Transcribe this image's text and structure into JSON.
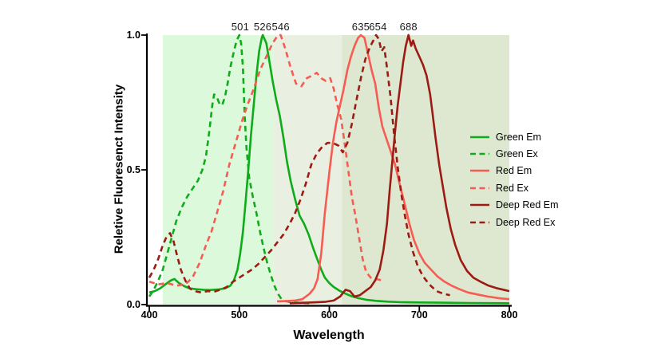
{
  "chart_data": {
    "type": "line",
    "title": "",
    "xlabel": "Wavelength",
    "ylabel": "Reletive Fluoresenct Intensity",
    "xlim": [
      400,
      800
    ],
    "ylim": [
      0,
      1
    ],
    "grid": false,
    "legend_position": "right",
    "x_ticks": [
      400,
      500,
      600,
      700,
      800
    ],
    "y_ticks": [
      1.0,
      0.5,
      0.0
    ],
    "x_tick_labels": [
      "400",
      "500",
      "600",
      "700",
      "800"
    ],
    "y_tick_labels": [
      "1.0",
      "0.5",
      "0.0"
    ],
    "peak_labels": [
      {
        "text": "501",
        "nm": 501
      },
      {
        "text": "526",
        "nm": 526
      },
      {
        "text": "546",
        "nm": 546
      },
      {
        "text": "635",
        "nm": 635
      },
      {
        "text": "654",
        "nm": 654
      },
      {
        "text": "688",
        "nm": 688
      }
    ],
    "background_bands": [
      {
        "from_nm": 415,
        "to_nm": 538,
        "color": "#dcfadb"
      },
      {
        "from_nm": 538,
        "to_nm": 614,
        "color": "#e9f0e2"
      },
      {
        "from_nm": 614,
        "to_nm": 800,
        "color": "#dee8d0"
      }
    ],
    "series": [
      {
        "name": "Green Em",
        "color": "#10ab1b",
        "dash": "solid",
        "points": [
          [
            400,
            0.045
          ],
          [
            406,
            0.05
          ],
          [
            412,
            0.06
          ],
          [
            418,
            0.075
          ],
          [
            424,
            0.09
          ],
          [
            428,
            0.095
          ],
          [
            433,
            0.08
          ],
          [
            439,
            0.068
          ],
          [
            445,
            0.06
          ],
          [
            452,
            0.057
          ],
          [
            460,
            0.055
          ],
          [
            468,
            0.054
          ],
          [
            476,
            0.056
          ],
          [
            484,
            0.06
          ],
          [
            490,
            0.07
          ],
          [
            494,
            0.09
          ],
          [
            498,
            0.13
          ],
          [
            501,
            0.19
          ],
          [
            504,
            0.27
          ],
          [
            507,
            0.38
          ],
          [
            510,
            0.5
          ],
          [
            513,
            0.63
          ],
          [
            516,
            0.74
          ],
          [
            519,
            0.85
          ],
          [
            522,
            0.94
          ],
          [
            525,
            0.99
          ],
          [
            526,
            1.0
          ],
          [
            530,
            0.97
          ],
          [
            533,
            0.91
          ],
          [
            537,
            0.83
          ],
          [
            541,
            0.76
          ],
          [
            545,
            0.7
          ],
          [
            549,
            0.62
          ],
          [
            553,
            0.53
          ],
          [
            557,
            0.46
          ],
          [
            562,
            0.39
          ],
          [
            567,
            0.33
          ],
          [
            572,
            0.3
          ],
          [
            577,
            0.26
          ],
          [
            582,
            0.21
          ],
          [
            587,
            0.165
          ],
          [
            591,
            0.13
          ],
          [
            595,
            0.1
          ],
          [
            600,
            0.08
          ],
          [
            605,
            0.065
          ],
          [
            611,
            0.052
          ],
          [
            617,
            0.042
          ],
          [
            624,
            0.032
          ],
          [
            632,
            0.024
          ],
          [
            641,
            0.018
          ],
          [
            652,
            0.014
          ],
          [
            665,
            0.011
          ],
          [
            680,
            0.009
          ],
          [
            700,
            0.008
          ],
          [
            725,
            0.007
          ],
          [
            755,
            0.006
          ],
          [
            800,
            0.005
          ]
        ]
      },
      {
        "name": "Green Ex",
        "color": "#10ab1b",
        "dash": "dashed",
        "points": [
          [
            400,
            0.03
          ],
          [
            405,
            0.055
          ],
          [
            410,
            0.09
          ],
          [
            415,
            0.13
          ],
          [
            420,
            0.19
          ],
          [
            425,
            0.25
          ],
          [
            430,
            0.31
          ],
          [
            436,
            0.36
          ],
          [
            442,
            0.4
          ],
          [
            448,
            0.43
          ],
          [
            454,
            0.46
          ],
          [
            459,
            0.5
          ],
          [
            463,
            0.55
          ],
          [
            467,
            0.65
          ],
          [
            470,
            0.74
          ],
          [
            472,
            0.78
          ],
          [
            475,
            0.77
          ],
          [
            478,
            0.745
          ],
          [
            481,
            0.74
          ],
          [
            484,
            0.77
          ],
          [
            487,
            0.82
          ],
          [
            490,
            0.88
          ],
          [
            494,
            0.94
          ],
          [
            497,
            0.98
          ],
          [
            500,
            1.0
          ],
          [
            502,
            0.97
          ],
          [
            504,
            0.88
          ],
          [
            506,
            0.7
          ],
          [
            508,
            0.58
          ],
          [
            511,
            0.47
          ],
          [
            515,
            0.4
          ],
          [
            519,
            0.34
          ],
          [
            523,
            0.27
          ],
          [
            527,
            0.21
          ],
          [
            531,
            0.155
          ],
          [
            535,
            0.11
          ],
          [
            539,
            0.07
          ],
          [
            543,
            0.04
          ],
          [
            547,
            0.02
          ],
          [
            552,
            0.012
          ],
          [
            560,
            0.008
          ],
          [
            570,
            0.006
          ],
          [
            578,
            0.005
          ]
        ]
      },
      {
        "name": "Red Em",
        "color": "#f75b51",
        "dash": "solid",
        "points": [
          [
            542,
            0.012
          ],
          [
            552,
            0.013
          ],
          [
            562,
            0.015
          ],
          [
            570,
            0.02
          ],
          [
            578,
            0.04
          ],
          [
            583,
            0.06
          ],
          [
            587,
            0.095
          ],
          [
            591,
            0.19
          ],
          [
            595,
            0.34
          ],
          [
            600,
            0.49
          ],
          [
            604,
            0.6
          ],
          [
            608,
            0.68
          ],
          [
            612,
            0.74
          ],
          [
            616,
            0.8
          ],
          [
            620,
            0.87
          ],
          [
            624,
            0.92
          ],
          [
            628,
            0.96
          ],
          [
            632,
            0.99
          ],
          [
            635,
            1.0
          ],
          [
            639,
            0.99
          ],
          [
            643,
            0.93
          ],
          [
            647,
            0.87
          ],
          [
            651,
            0.82
          ],
          [
            655,
            0.73
          ],
          [
            659,
            0.66
          ],
          [
            663,
            0.62
          ],
          [
            668,
            0.57
          ],
          [
            673,
            0.52
          ],
          [
            678,
            0.45
          ],
          [
            684,
            0.37
          ],
          [
            689,
            0.3
          ],
          [
            694,
            0.24
          ],
          [
            700,
            0.19
          ],
          [
            706,
            0.155
          ],
          [
            713,
            0.13
          ],
          [
            720,
            0.105
          ],
          [
            728,
            0.085
          ],
          [
            736,
            0.07
          ],
          [
            744,
            0.058
          ],
          [
            754,
            0.045
          ],
          [
            764,
            0.038
          ],
          [
            776,
            0.03
          ],
          [
            788,
            0.024
          ],
          [
            800,
            0.02
          ]
        ]
      },
      {
        "name": "Red Ex",
        "color": "#f75b51",
        "dash": "dashed",
        "points": [
          [
            400,
            0.085
          ],
          [
            410,
            0.075
          ],
          [
            420,
            0.08
          ],
          [
            430,
            0.07
          ],
          [
            440,
            0.075
          ],
          [
            448,
            0.1
          ],
          [
            456,
            0.155
          ],
          [
            463,
            0.22
          ],
          [
            469,
            0.27
          ],
          [
            476,
            0.35
          ],
          [
            482,
            0.42
          ],
          [
            489,
            0.52
          ],
          [
            496,
            0.6
          ],
          [
            503,
            0.68
          ],
          [
            509,
            0.74
          ],
          [
            516,
            0.8
          ],
          [
            523,
            0.87
          ],
          [
            530,
            0.92
          ],
          [
            537,
            0.97
          ],
          [
            543,
            1.0
          ],
          [
            546,
            1.0
          ],
          [
            551,
            0.95
          ],
          [
            557,
            0.88
          ],
          [
            563,
            0.82
          ],
          [
            569,
            0.81
          ],
          [
            575,
            0.84
          ],
          [
            581,
            0.85
          ],
          [
            586,
            0.86
          ],
          [
            591,
            0.84
          ],
          [
            596,
            0.83
          ],
          [
            601,
            0.84
          ],
          [
            605,
            0.8
          ],
          [
            609,
            0.74
          ],
          [
            613,
            0.69
          ],
          [
            617,
            0.6
          ],
          [
            621,
            0.5
          ],
          [
            625,
            0.4
          ],
          [
            629,
            0.33
          ],
          [
            633,
            0.25
          ],
          [
            637,
            0.17
          ],
          [
            641,
            0.12
          ],
          [
            646,
            0.1
          ],
          [
            652,
            0.095
          ],
          [
            658,
            0.09
          ]
        ]
      },
      {
        "name": "Deep Red Em",
        "color": "#9c1b13",
        "dash": "solid",
        "points": [
          [
            556,
            0.005
          ],
          [
            580,
            0.008
          ],
          [
            595,
            0.01
          ],
          [
            605,
            0.015
          ],
          [
            612,
            0.03
          ],
          [
            618,
            0.055
          ],
          [
            623,
            0.05
          ],
          [
            628,
            0.03
          ],
          [
            634,
            0.035
          ],
          [
            640,
            0.05
          ],
          [
            646,
            0.065
          ],
          [
            651,
            0.09
          ],
          [
            656,
            0.13
          ],
          [
            660,
            0.2
          ],
          [
            664,
            0.3
          ],
          [
            667,
            0.42
          ],
          [
            670,
            0.53
          ],
          [
            673,
            0.64
          ],
          [
            676,
            0.74
          ],
          [
            679,
            0.82
          ],
          [
            682,
            0.9
          ],
          [
            685,
            0.96
          ],
          [
            688,
            1.0
          ],
          [
            691,
            0.96
          ],
          [
            693,
            0.98
          ],
          [
            696,
            0.95
          ],
          [
            700,
            0.92
          ],
          [
            704,
            0.89
          ],
          [
            708,
            0.85
          ],
          [
            712,
            0.78
          ],
          [
            715,
            0.7
          ],
          [
            718,
            0.62
          ],
          [
            722,
            0.52
          ],
          [
            726,
            0.44
          ],
          [
            730,
            0.36
          ],
          [
            735,
            0.28
          ],
          [
            740,
            0.22
          ],
          [
            746,
            0.165
          ],
          [
            753,
            0.125
          ],
          [
            760,
            0.1
          ],
          [
            768,
            0.085
          ],
          [
            777,
            0.07
          ],
          [
            787,
            0.06
          ],
          [
            800,
            0.05
          ]
        ]
      },
      {
        "name": "Deep Red Ex",
        "color": "#9c1b13",
        "dash": "dashed",
        "points": [
          [
            400,
            0.1
          ],
          [
            405,
            0.13
          ],
          [
            410,
            0.17
          ],
          [
            415,
            0.22
          ],
          [
            419,
            0.25
          ],
          [
            423,
            0.265
          ],
          [
            427,
            0.235
          ],
          [
            431,
            0.18
          ],
          [
            435,
            0.13
          ],
          [
            440,
            0.09
          ],
          [
            445,
            0.06
          ],
          [
            450,
            0.05
          ],
          [
            458,
            0.045
          ],
          [
            465,
            0.05
          ],
          [
            472,
            0.048
          ],
          [
            479,
            0.055
          ],
          [
            486,
            0.065
          ],
          [
            493,
            0.085
          ],
          [
            500,
            0.1
          ],
          [
            507,
            0.115
          ],
          [
            514,
            0.13
          ],
          [
            521,
            0.15
          ],
          [
            528,
            0.175
          ],
          [
            535,
            0.2
          ],
          [
            542,
            0.23
          ],
          [
            549,
            0.26
          ],
          [
            556,
            0.3
          ],
          [
            562,
            0.34
          ],
          [
            568,
            0.39
          ],
          [
            574,
            0.45
          ],
          [
            580,
            0.52
          ],
          [
            586,
            0.56
          ],
          [
            592,
            0.585
          ],
          [
            598,
            0.6
          ],
          [
            604,
            0.6
          ],
          [
            610,
            0.59
          ],
          [
            615,
            0.565
          ],
          [
            620,
            0.6
          ],
          [
            625,
            0.67
          ],
          [
            630,
            0.755
          ],
          [
            635,
            0.84
          ],
          [
            640,
            0.91
          ],
          [
            645,
            0.955
          ],
          [
            649,
            0.98
          ],
          [
            652,
            1.0
          ],
          [
            655,
            0.985
          ],
          [
            658,
            0.94
          ],
          [
            661,
            0.955
          ],
          [
            664,
            0.88
          ],
          [
            668,
            0.77
          ],
          [
            672,
            0.63
          ],
          [
            676,
            0.51
          ],
          [
            680,
            0.41
          ],
          [
            684,
            0.33
          ],
          [
            688,
            0.26
          ],
          [
            693,
            0.195
          ],
          [
            698,
            0.145
          ],
          [
            704,
            0.105
          ],
          [
            711,
            0.075
          ],
          [
            719,
            0.05
          ],
          [
            727,
            0.04
          ],
          [
            734,
            0.035
          ]
        ]
      }
    ]
  }
}
